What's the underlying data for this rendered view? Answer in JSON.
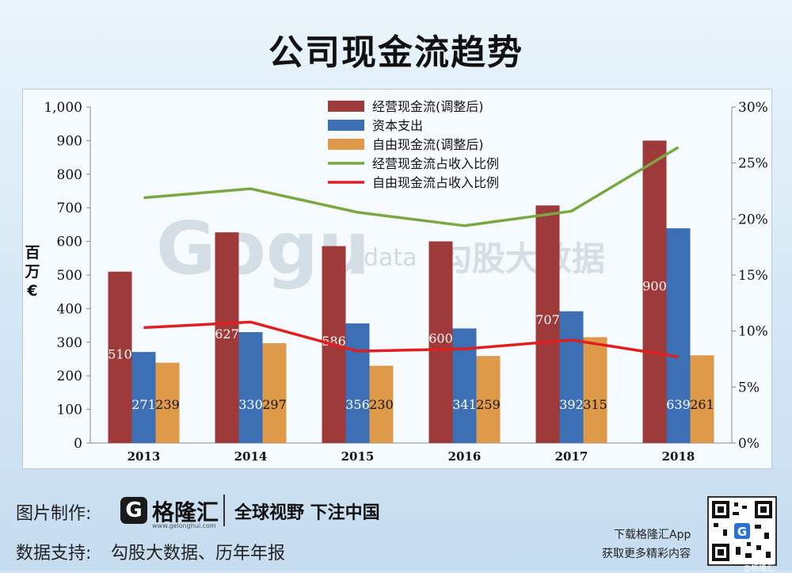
{
  "title": "公司现金流趋势",
  "chart_data": {
    "type": "bar",
    "categories": [
      "2013",
      "2014",
      "2015",
      "2016",
      "2017",
      "2018"
    ],
    "series": [
      {
        "name": "经营现金流(调整后)",
        "kind": "bar",
        "color": "#9e3a3a",
        "values": [
          510,
          627,
          586,
          600,
          707,
          900
        ]
      },
      {
        "name": "资本支出",
        "kind": "bar",
        "color": "#3d6fb5",
        "values": [
          271,
          330,
          356,
          341,
          392,
          639
        ]
      },
      {
        "name": "自由现金流(调整后)",
        "kind": "bar",
        "color": "#de9a48",
        "values": [
          239,
          297,
          230,
          259,
          315,
          261
        ]
      },
      {
        "name": "经营现金流占收入比例",
        "kind": "line",
        "axis": "right",
        "color": "#7ba743",
        "values": [
          21.9,
          22.7,
          20.6,
          19.4,
          20.7,
          26.4
        ]
      },
      {
        "name": "自由现金流占收入比例",
        "kind": "line",
        "axis": "right",
        "color": "#e02020",
        "values": [
          10.3,
          10.8,
          8.2,
          8.4,
          9.2,
          7.7
        ]
      }
    ],
    "ylabel": "百万€",
    "ylim": [
      0,
      1000
    ],
    "yticks": [
      "0",
      "100",
      "200",
      "300",
      "400",
      "500",
      "600",
      "700",
      "800",
      "900",
      "1,000"
    ],
    "y2lim": [
      0,
      30
    ],
    "y2ticks": [
      "0%",
      "5%",
      "10%",
      "15%",
      "20%",
      "25%",
      "30%"
    ],
    "legend_position": "top-center",
    "grid": false
  },
  "watermark": {
    "brand": "Gogu",
    "suffix": "data",
    "cn": "勾股大数据"
  },
  "footer": {
    "made_by_label": "图片制作:",
    "brand_icon": "G",
    "brand_name": "格隆汇",
    "brand_url": "www.gelonghui.com",
    "slogan": "全球视野 下注中国",
    "support_label": "数据支持:",
    "support_text": "勾股大数据、历年年报",
    "app_line1": "下载格隆汇App",
    "app_line2": "获取更多精彩内容",
    "credit": "@格隆汇"
  }
}
